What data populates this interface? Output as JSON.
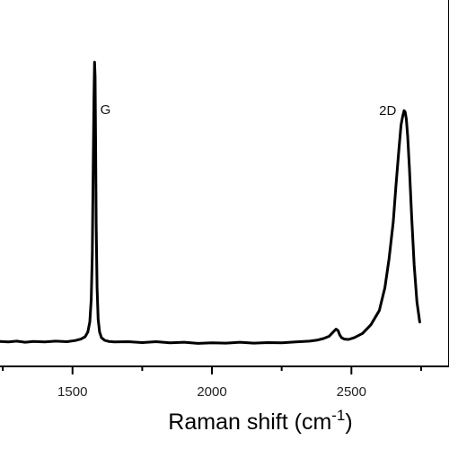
{
  "chart_data": {
    "type": "line",
    "title": "",
    "xlabel": {
      "main": "Raman shift (cm",
      "sup": "-1",
      "close": ")"
    },
    "ylabel": "",
    "xlim": [
      1240,
      2850
    ],
    "ylim": [
      0,
      1
    ],
    "x_ticks": [
      1500,
      2000,
      2500
    ],
    "x_tick_labels": [
      "1500",
      "2000",
      "2500"
    ],
    "x_minor_ticks": [
      1250,
      1750,
      2250,
      2750
    ],
    "grid": false,
    "annotations": [
      {
        "text": "G",
        "x": 1580
      },
      {
        "text": "2D",
        "x": 2690
      }
    ],
    "series": [
      {
        "x": [
          1240,
          1270,
          1300,
          1330,
          1360,
          1400,
          1440,
          1480,
          1510,
          1530,
          1545,
          1555,
          1562,
          1567,
          1571,
          1574,
          1577,
          1579,
          1581,
          1583,
          1585,
          1588,
          1592,
          1597,
          1604,
          1615,
          1630,
          1650,
          1700,
          1750,
          1800,
          1850,
          1900,
          1950,
          2000,
          2050,
          2100,
          2150,
          2200,
          2250,
          2300,
          2350,
          2380,
          2400,
          2420,
          2435,
          2445,
          2452,
          2458,
          2465,
          2475,
          2490,
          2510,
          2540,
          2570,
          2600,
          2620,
          2635,
          2650,
          2660,
          2670,
          2678,
          2684,
          2689,
          2693,
          2697,
          2702,
          2708,
          2716,
          2725,
          2735,
          2745
        ],
        "y": [
          0.012,
          0.01,
          0.013,
          0.009,
          0.012,
          0.01,
          0.013,
          0.011,
          0.015,
          0.02,
          0.028,
          0.045,
          0.08,
          0.16,
          0.32,
          0.6,
          0.88,
          0.99,
          0.94,
          0.7,
          0.42,
          0.2,
          0.09,
          0.045,
          0.025,
          0.016,
          0.012,
          0.01,
          0.011,
          0.008,
          0.011,
          0.007,
          0.009,
          0.005,
          0.007,
          0.006,
          0.009,
          0.006,
          0.008,
          0.007,
          0.01,
          0.013,
          0.017,
          0.022,
          0.03,
          0.045,
          0.055,
          0.05,
          0.035,
          0.025,
          0.02,
          0.019,
          0.025,
          0.04,
          0.07,
          0.12,
          0.2,
          0.3,
          0.43,
          0.56,
          0.68,
          0.77,
          0.8,
          0.82,
          0.815,
          0.79,
          0.73,
          0.62,
          0.45,
          0.28,
          0.15,
          0.08
        ]
      }
    ]
  }
}
